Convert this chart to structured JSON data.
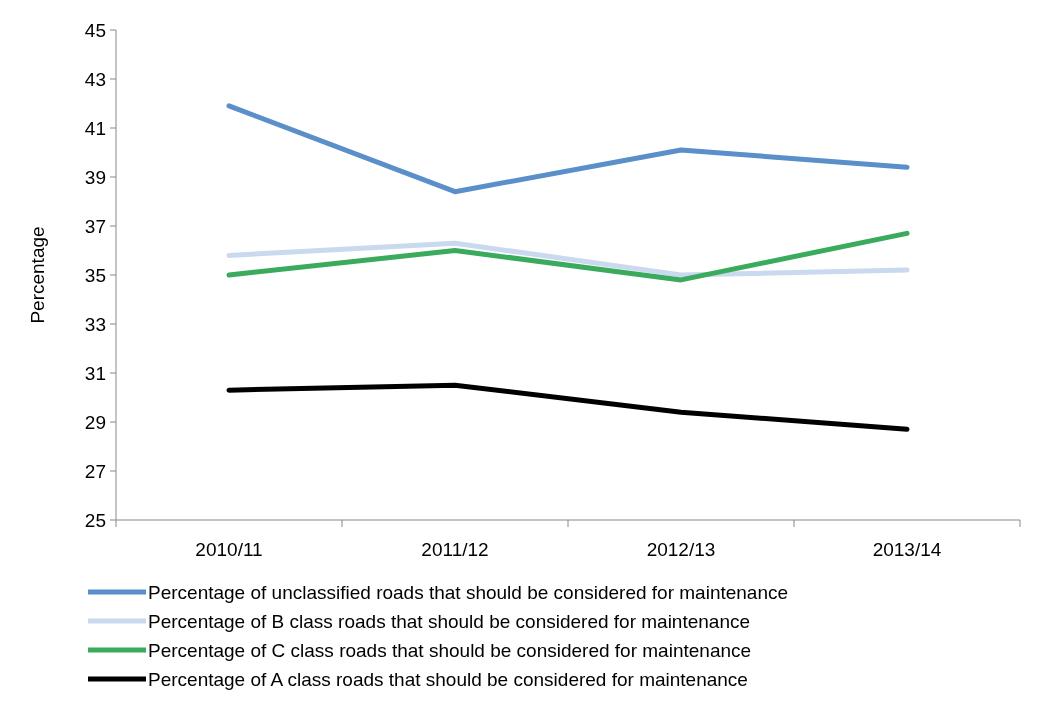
{
  "chart_data": {
    "type": "line",
    "ylabel": "Percentage",
    "categories": [
      "2010/11",
      "2011/12",
      "2012/13",
      "2013/14"
    ],
    "series": [
      {
        "name": "Percentage of unclassified roads that should be considered for maintenance",
        "color": "#5b8fc9",
        "values": [
          41.9,
          38.4,
          40.1,
          39.4
        ]
      },
      {
        "name": "Percentage of B class roads that should be considered for maintenance",
        "color": "#c9d9ee",
        "values": [
          35.8,
          36.3,
          35.0,
          35.2
        ]
      },
      {
        "name": "Percentage of C class roads that should be considered for maintenance",
        "color": "#3aaa5c",
        "values": [
          35.0,
          36.0,
          34.8,
          36.7
        ]
      },
      {
        "name": "Percentage of A class roads that should be considered for maintenance",
        "color": "#000000",
        "values": [
          30.3,
          30.5,
          29.4,
          28.7
        ]
      }
    ],
    "ylim": [
      25,
      45
    ],
    "yticks": [
      25,
      27,
      29,
      31,
      33,
      35,
      37,
      39,
      41,
      43,
      45
    ],
    "grid": false,
    "legend": "bottom",
    "marker": "none",
    "line_style": "solid"
  }
}
